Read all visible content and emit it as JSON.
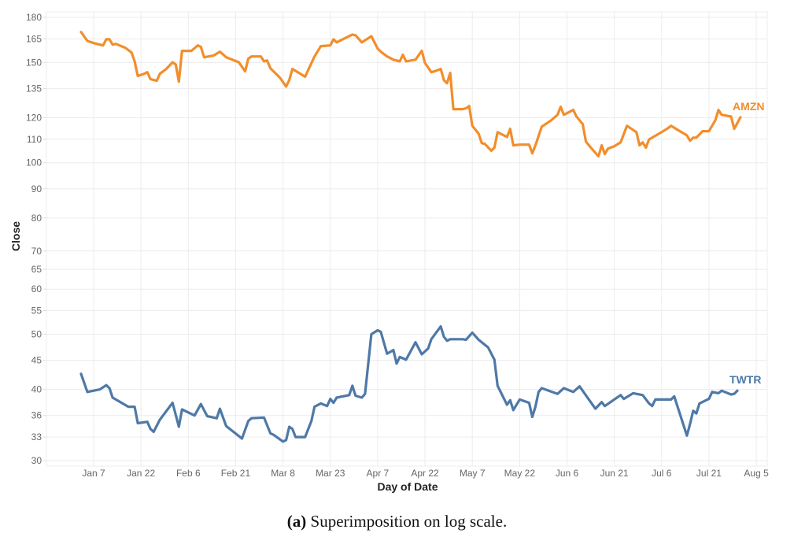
{
  "chart_data": {
    "type": "line",
    "title": "",
    "xlabel": "Day of Date",
    "ylabel": "Close",
    "yscale": "log",
    "ylim": [
      30,
      180
    ],
    "xlim_day": [
      -8,
      220
    ],
    "grid": true,
    "yticks": [
      30,
      33,
      36,
      40,
      45,
      50,
      55,
      60,
      65,
      70,
      80,
      90,
      100,
      110,
      120,
      135,
      150,
      165,
      180
    ],
    "xticks": [
      {
        "day": 7,
        "label": "Jan 7"
      },
      {
        "day": 22,
        "label": "Jan 22"
      },
      {
        "day": 37,
        "label": "Feb 6"
      },
      {
        "day": 52,
        "label": "Feb 21"
      },
      {
        "day": 67,
        "label": "Mar 8"
      },
      {
        "day": 82,
        "label": "Mar 23"
      },
      {
        "day": 97,
        "label": "Apr 7"
      },
      {
        "day": 112,
        "label": "Apr 22"
      },
      {
        "day": 127,
        "label": "May 7"
      },
      {
        "day": 142,
        "label": "May 22"
      },
      {
        "day": 157,
        "label": "Jun 6"
      },
      {
        "day": 172,
        "label": "Jun 21"
      },
      {
        "day": 187,
        "label": "Jul 6"
      },
      {
        "day": 202,
        "label": "Jul 21"
      },
      {
        "day": 217,
        "label": "Aug 5"
      }
    ],
    "series": [
      {
        "name": "AMZN",
        "color": "#f28e2b",
        "x": [
          3,
          5,
          7,
          10,
          11,
          12,
          13,
          14,
          17,
          19,
          20,
          21,
          23,
          24,
          25,
          27,
          28,
          30,
          32,
          33,
          34,
          35,
          38,
          40,
          41,
          42,
          45,
          47,
          49,
          53,
          55,
          56,
          57,
          60,
          61,
          62,
          63,
          66,
          68,
          69,
          70,
          74,
          77,
          79,
          82,
          83,
          84,
          87,
          89,
          90,
          92,
          95,
          97,
          98,
          100,
          102,
          104,
          105,
          106,
          109,
          111,
          112,
          114,
          115,
          117,
          118,
          119,
          120,
          121,
          124,
          125,
          126,
          127,
          129,
          130,
          131,
          133,
          134,
          135,
          137,
          138,
          139,
          140,
          142,
          145,
          146,
          147,
          149,
          152,
          154,
          155,
          156,
          159,
          160,
          162,
          163,
          165,
          167,
          168,
          169,
          170,
          172,
          174,
          176,
          179,
          180,
          181,
          182,
          183,
          187,
          189,
          190,
          192,
          195,
          196,
          197,
          198,
          200,
          202,
          204,
          205,
          206,
          209,
          210,
          212
        ],
        "values": [
          169.6,
          163.7,
          162.2,
          160.7,
          164.7,
          164.7,
          161.2,
          161.7,
          159.2,
          156.2,
          150.7,
          142.0,
          143.3,
          144.2,
          140.2,
          139.3,
          143.3,
          146.1,
          150.1,
          148.8,
          138.8,
          157.2,
          157.2,
          160.7,
          159.7,
          153.2,
          154.2,
          156.7,
          153.2,
          150.1,
          144.7,
          152.2,
          153.7,
          153.7,
          150.7,
          151.2,
          146.5,
          141.1,
          136.1,
          139.7,
          146.1,
          141.6,
          153.7,
          160.2,
          160.7,
          164.7,
          162.7,
          165.8,
          167.9,
          167.4,
          162.7,
          166.8,
          158.7,
          156.7,
          153.7,
          151.7,
          150.7,
          154.7,
          150.7,
          151.7,
          157.2,
          149.7,
          144.2,
          144.7,
          146.1,
          139.7,
          137.9,
          143.8,
          124.2,
          124.2,
          124.6,
          125.8,
          116.1,
          112.5,
          108.3,
          107.9,
          105.0,
          106.3,
          113.2,
          111.7,
          111.0,
          114.7,
          107.3,
          107.6,
          107.6,
          103.9,
          107.3,
          115.7,
          118.7,
          121.4,
          125.4,
          121.4,
          123.8,
          120.6,
          116.9,
          108.9,
          105.6,
          102.6,
          107.3,
          103.6,
          105.9,
          106.9,
          108.6,
          116.1,
          113.2,
          107.3,
          108.6,
          106.3,
          109.9,
          113.2,
          115.0,
          116.1,
          114.3,
          111.7,
          109.3,
          110.7,
          110.7,
          113.6,
          113.6,
          118.7,
          123.8,
          121.4,
          120.6,
          114.7,
          120.2
        ]
      },
      {
        "name": "TWTR",
        "color": "#4e79a7",
        "x": [
          3,
          5,
          9,
          11,
          12,
          13,
          18,
          20,
          21,
          24,
          25,
          26,
          28,
          32,
          34,
          35,
          39,
          41,
          43,
          46,
          47,
          49,
          54,
          56,
          57,
          61,
          63,
          64,
          67,
          68,
          69,
          70,
          71,
          74,
          76,
          77,
          79,
          81,
          82,
          83,
          84,
          88,
          89,
          90,
          92,
          93,
          95,
          97,
          98,
          100,
          102,
          103,
          104,
          106,
          109,
          111,
          113,
          114,
          117,
          118,
          119,
          120,
          124,
          125,
          127,
          129,
          132,
          134,
          135,
          138,
          139,
          140,
          142,
          145,
          146,
          147,
          148,
          149,
          154,
          156,
          159,
          161,
          166,
          168,
          169,
          174,
          175,
          178,
          181,
          183,
          184,
          185,
          190,
          191,
          195,
          196,
          197,
          198,
          199,
          202,
          203,
          205,
          206,
          209,
          210,
          211
        ],
        "values": [
          42.6,
          39.6,
          40.0,
          40.7,
          40.2,
          38.7,
          37.3,
          37.3,
          34.9,
          35.1,
          34.1,
          33.7,
          35.4,
          37.9,
          34.4,
          36.9,
          36.0,
          37.7,
          35.9,
          35.6,
          37.0,
          34.5,
          32.8,
          35.2,
          35.6,
          35.7,
          33.5,
          33.3,
          32.4,
          32.6,
          34.4,
          34.1,
          33.0,
          33.0,
          35.2,
          37.3,
          37.8,
          37.4,
          38.5,
          37.9,
          38.7,
          39.1,
          40.6,
          39.0,
          38.7,
          39.3,
          50.0,
          50.8,
          50.5,
          46.2,
          46.9,
          44.4,
          45.6,
          45.1,
          48.4,
          46.1,
          47.2,
          49.0,
          51.6,
          49.5,
          48.7,
          49.0,
          49.0,
          48.9,
          50.3,
          48.9,
          47.4,
          45.1,
          40.6,
          37.6,
          38.3,
          36.8,
          38.4,
          37.9,
          35.8,
          37.3,
          39.6,
          40.2,
          39.3,
          40.2,
          39.6,
          40.5,
          37.0,
          38.0,
          37.4,
          39.1,
          38.5,
          39.4,
          39.1,
          37.8,
          37.4,
          38.4,
          38.4,
          38.9,
          33.2,
          34.8,
          36.7,
          36.3,
          37.8,
          38.5,
          39.6,
          39.4,
          39.8,
          39.2,
          39.3,
          39.8
        ]
      }
    ]
  },
  "caption": {
    "label": "(a)",
    "text": " Superimposition on log scale."
  }
}
